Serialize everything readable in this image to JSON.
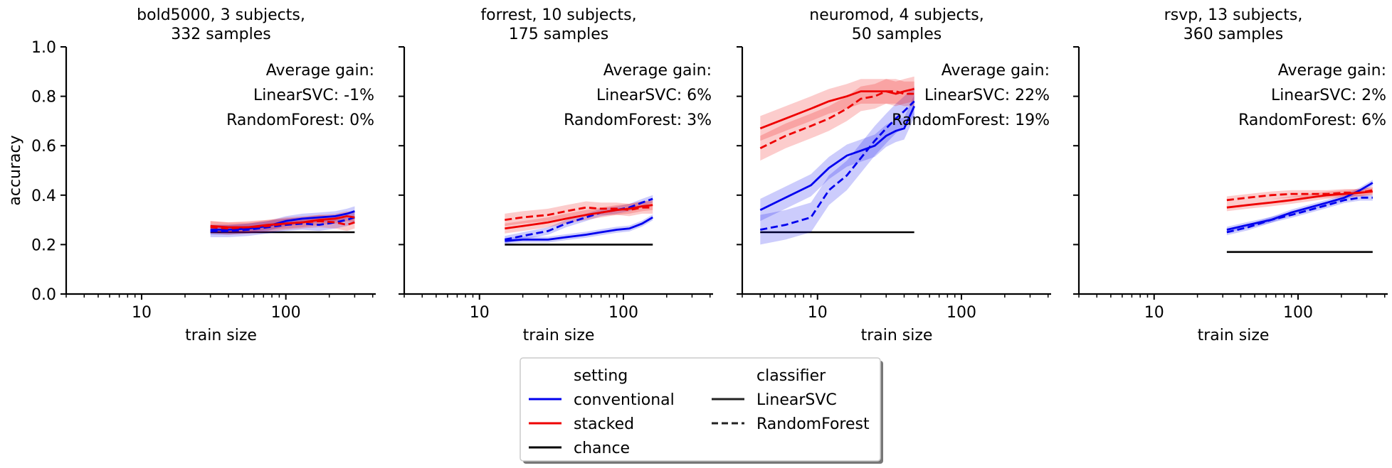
{
  "figure": {
    "legend": {
      "setting_title": "setting",
      "classifier_title": "classifier",
      "entries": [
        {
          "label": "conventional",
          "color": "#0000ee",
          "style": "solid"
        },
        {
          "label": "stacked",
          "color": "#ee0000",
          "style": "solid"
        },
        {
          "label": "chance",
          "color": "#000000",
          "style": "solid"
        },
        {
          "label": "LinearSVC",
          "color": "#222222",
          "style": "solid"
        },
        {
          "label": "RandomForest",
          "color": "#222222",
          "style": "dashed"
        }
      ],
      "placement": "bottom-center"
    },
    "colors": {
      "conventional": "#0000ee",
      "stacked": "#ee0000",
      "chance": "#000000"
    }
  },
  "chart_data": [
    {
      "type": "line",
      "title": "bold5000, 3 subjects,\n332 samples",
      "xlabel": "train size",
      "ylabel": "accuracy",
      "xscale": "log",
      "xlim": [
        3,
        420
      ],
      "ylim": [
        0,
        1
      ],
      "xticks": [
        10,
        100
      ],
      "yticks": [
        0.0,
        0.2,
        0.4,
        0.6,
        0.8,
        1.0
      ],
      "annotation": [
        "Average gain:",
        "LinearSVC: -1%",
        "RandomForest: 0%"
      ],
      "x": [
        30,
        40,
        55,
        75,
        100,
        130,
        170,
        220,
        265,
        300
      ],
      "series": [
        {
          "setting": "conventional",
          "classifier": "LinearSVC",
          "values": [
            0.26,
            0.26,
            0.265,
            0.275,
            0.295,
            0.305,
            0.31,
            0.315,
            0.325,
            0.335
          ],
          "band": 0.02
        },
        {
          "setting": "conventional",
          "classifier": "RandomForest",
          "values": [
            0.255,
            0.255,
            0.26,
            0.27,
            0.28,
            0.285,
            0.28,
            0.29,
            0.3,
            0.31
          ],
          "band": 0.025
        },
        {
          "setting": "stacked",
          "classifier": "LinearSVC",
          "values": [
            0.275,
            0.27,
            0.27,
            0.28,
            0.285,
            0.29,
            0.3,
            0.305,
            0.315,
            0.31
          ],
          "band": 0.02
        },
        {
          "setting": "stacked",
          "classifier": "RandomForest",
          "values": [
            0.27,
            0.265,
            0.27,
            0.275,
            0.285,
            0.29,
            0.295,
            0.29,
            0.28,
            0.29
          ],
          "band": 0.025
        }
      ],
      "chance": {
        "x": [
          30,
          300
        ],
        "value": 0.25
      }
    },
    {
      "type": "line",
      "title": "forrest, 10 subjects,\n175 samples",
      "xlabel": "train size",
      "ylabel": "",
      "xscale": "log",
      "xlim": [
        3,
        420
      ],
      "ylim": [
        0,
        1
      ],
      "xticks": [
        10,
        100
      ],
      "yticks": [
        0.0,
        0.2,
        0.4,
        0.6,
        0.8,
        1.0
      ],
      "annotation": [
        "Average gain:",
        "LinearSVC: 6%",
        "RandomForest: 3%"
      ],
      "x": [
        15,
        20,
        30,
        40,
        55,
        70,
        90,
        110,
        135,
        160
      ],
      "series": [
        {
          "setting": "conventional",
          "classifier": "LinearSVC",
          "values": [
            0.215,
            0.22,
            0.22,
            0.23,
            0.24,
            0.25,
            0.26,
            0.265,
            0.285,
            0.31
          ],
          "band": 0.012
        },
        {
          "setting": "conventional",
          "classifier": "RandomForest",
          "values": [
            0.22,
            0.235,
            0.255,
            0.285,
            0.31,
            0.33,
            0.34,
            0.35,
            0.37,
            0.385
          ],
          "band": 0.015
        },
        {
          "setting": "stacked",
          "classifier": "LinearSVC",
          "values": [
            0.265,
            0.275,
            0.29,
            0.305,
            0.32,
            0.33,
            0.34,
            0.345,
            0.355,
            0.36
          ],
          "band": 0.02
        },
        {
          "setting": "stacked",
          "classifier": "RandomForest",
          "values": [
            0.3,
            0.31,
            0.32,
            0.335,
            0.35,
            0.345,
            0.345,
            0.34,
            0.35,
            0.35
          ],
          "band": 0.025
        }
      ],
      "chance": {
        "x": [
          15,
          160
        ],
        "value": 0.2
      }
    },
    {
      "type": "line",
      "title": "neuromod, 4 subjects,\n50 samples",
      "xlabel": "train size",
      "ylabel": "",
      "xscale": "log",
      "xlim": [
        3,
        420
      ],
      "ylim": [
        0,
        1
      ],
      "xticks": [
        10,
        100
      ],
      "yticks": [
        0.0,
        0.2,
        0.4,
        0.6,
        0.8,
        1.0
      ],
      "annotation": [
        "Average gain:",
        "LinearSVC: 22%",
        "RandomForest: 19%"
      ],
      "x": [
        4,
        6,
        9,
        12,
        16,
        20,
        25,
        30,
        35,
        40,
        47
      ],
      "series": [
        {
          "setting": "conventional",
          "classifier": "LinearSVC",
          "values": [
            0.34,
            0.39,
            0.44,
            0.51,
            0.56,
            0.58,
            0.6,
            0.64,
            0.66,
            0.67,
            0.76
          ],
          "band": 0.045
        },
        {
          "setting": "conventional",
          "classifier": "RandomForest",
          "values": [
            0.26,
            0.28,
            0.31,
            0.42,
            0.48,
            0.55,
            0.62,
            0.67,
            0.71,
            0.74,
            0.78
          ],
          "band": 0.06
        },
        {
          "setting": "stacked",
          "classifier": "LinearSVC",
          "values": [
            0.67,
            0.71,
            0.75,
            0.78,
            0.8,
            0.82,
            0.82,
            0.82,
            0.81,
            0.82,
            0.83
          ],
          "band": 0.05
        },
        {
          "setting": "stacked",
          "classifier": "RandomForest",
          "values": [
            0.59,
            0.64,
            0.68,
            0.71,
            0.75,
            0.79,
            0.8,
            0.82,
            0.82,
            0.81,
            0.81
          ],
          "band": 0.05
        }
      ],
      "chance": {
        "x": [
          4,
          47
        ],
        "value": 0.25
      }
    },
    {
      "type": "line",
      "title": "rsvp, 13 subjects,\n360 samples",
      "xlabel": "train size",
      "ylabel": "",
      "xscale": "log",
      "xlim": [
        3,
        420
      ],
      "ylim": [
        0,
        1
      ],
      "xticks": [
        10,
        100
      ],
      "yticks": [
        0.0,
        0.2,
        0.4,
        0.6,
        0.8,
        1.0
      ],
      "annotation": [
        "Average gain:",
        "LinearSVC: 2%",
        "RandomForest: 6%"
      ],
      "x": [
        32,
        45,
        65,
        90,
        120,
        160,
        210,
        270,
        330
      ],
      "series": [
        {
          "setting": "conventional",
          "classifier": "LinearSVC",
          "values": [
            0.26,
            0.28,
            0.3,
            0.33,
            0.35,
            0.37,
            0.39,
            0.42,
            0.45
          ],
          "band": 0.012
        },
        {
          "setting": "conventional",
          "classifier": "RandomForest",
          "values": [
            0.25,
            0.27,
            0.3,
            0.32,
            0.34,
            0.36,
            0.38,
            0.39,
            0.39
          ],
          "band": 0.012
        },
        {
          "setting": "stacked",
          "classifier": "LinearSVC",
          "values": [
            0.35,
            0.36,
            0.37,
            0.38,
            0.39,
            0.4,
            0.405,
            0.41,
            0.415
          ],
          "band": 0.015
        },
        {
          "setting": "stacked",
          "classifier": "RandomForest",
          "values": [
            0.38,
            0.39,
            0.4,
            0.405,
            0.405,
            0.405,
            0.41,
            0.41,
            0.42
          ],
          "band": 0.015
        }
      ],
      "chance": {
        "x": [
          32,
          330
        ],
        "value": 0.17
      }
    }
  ]
}
